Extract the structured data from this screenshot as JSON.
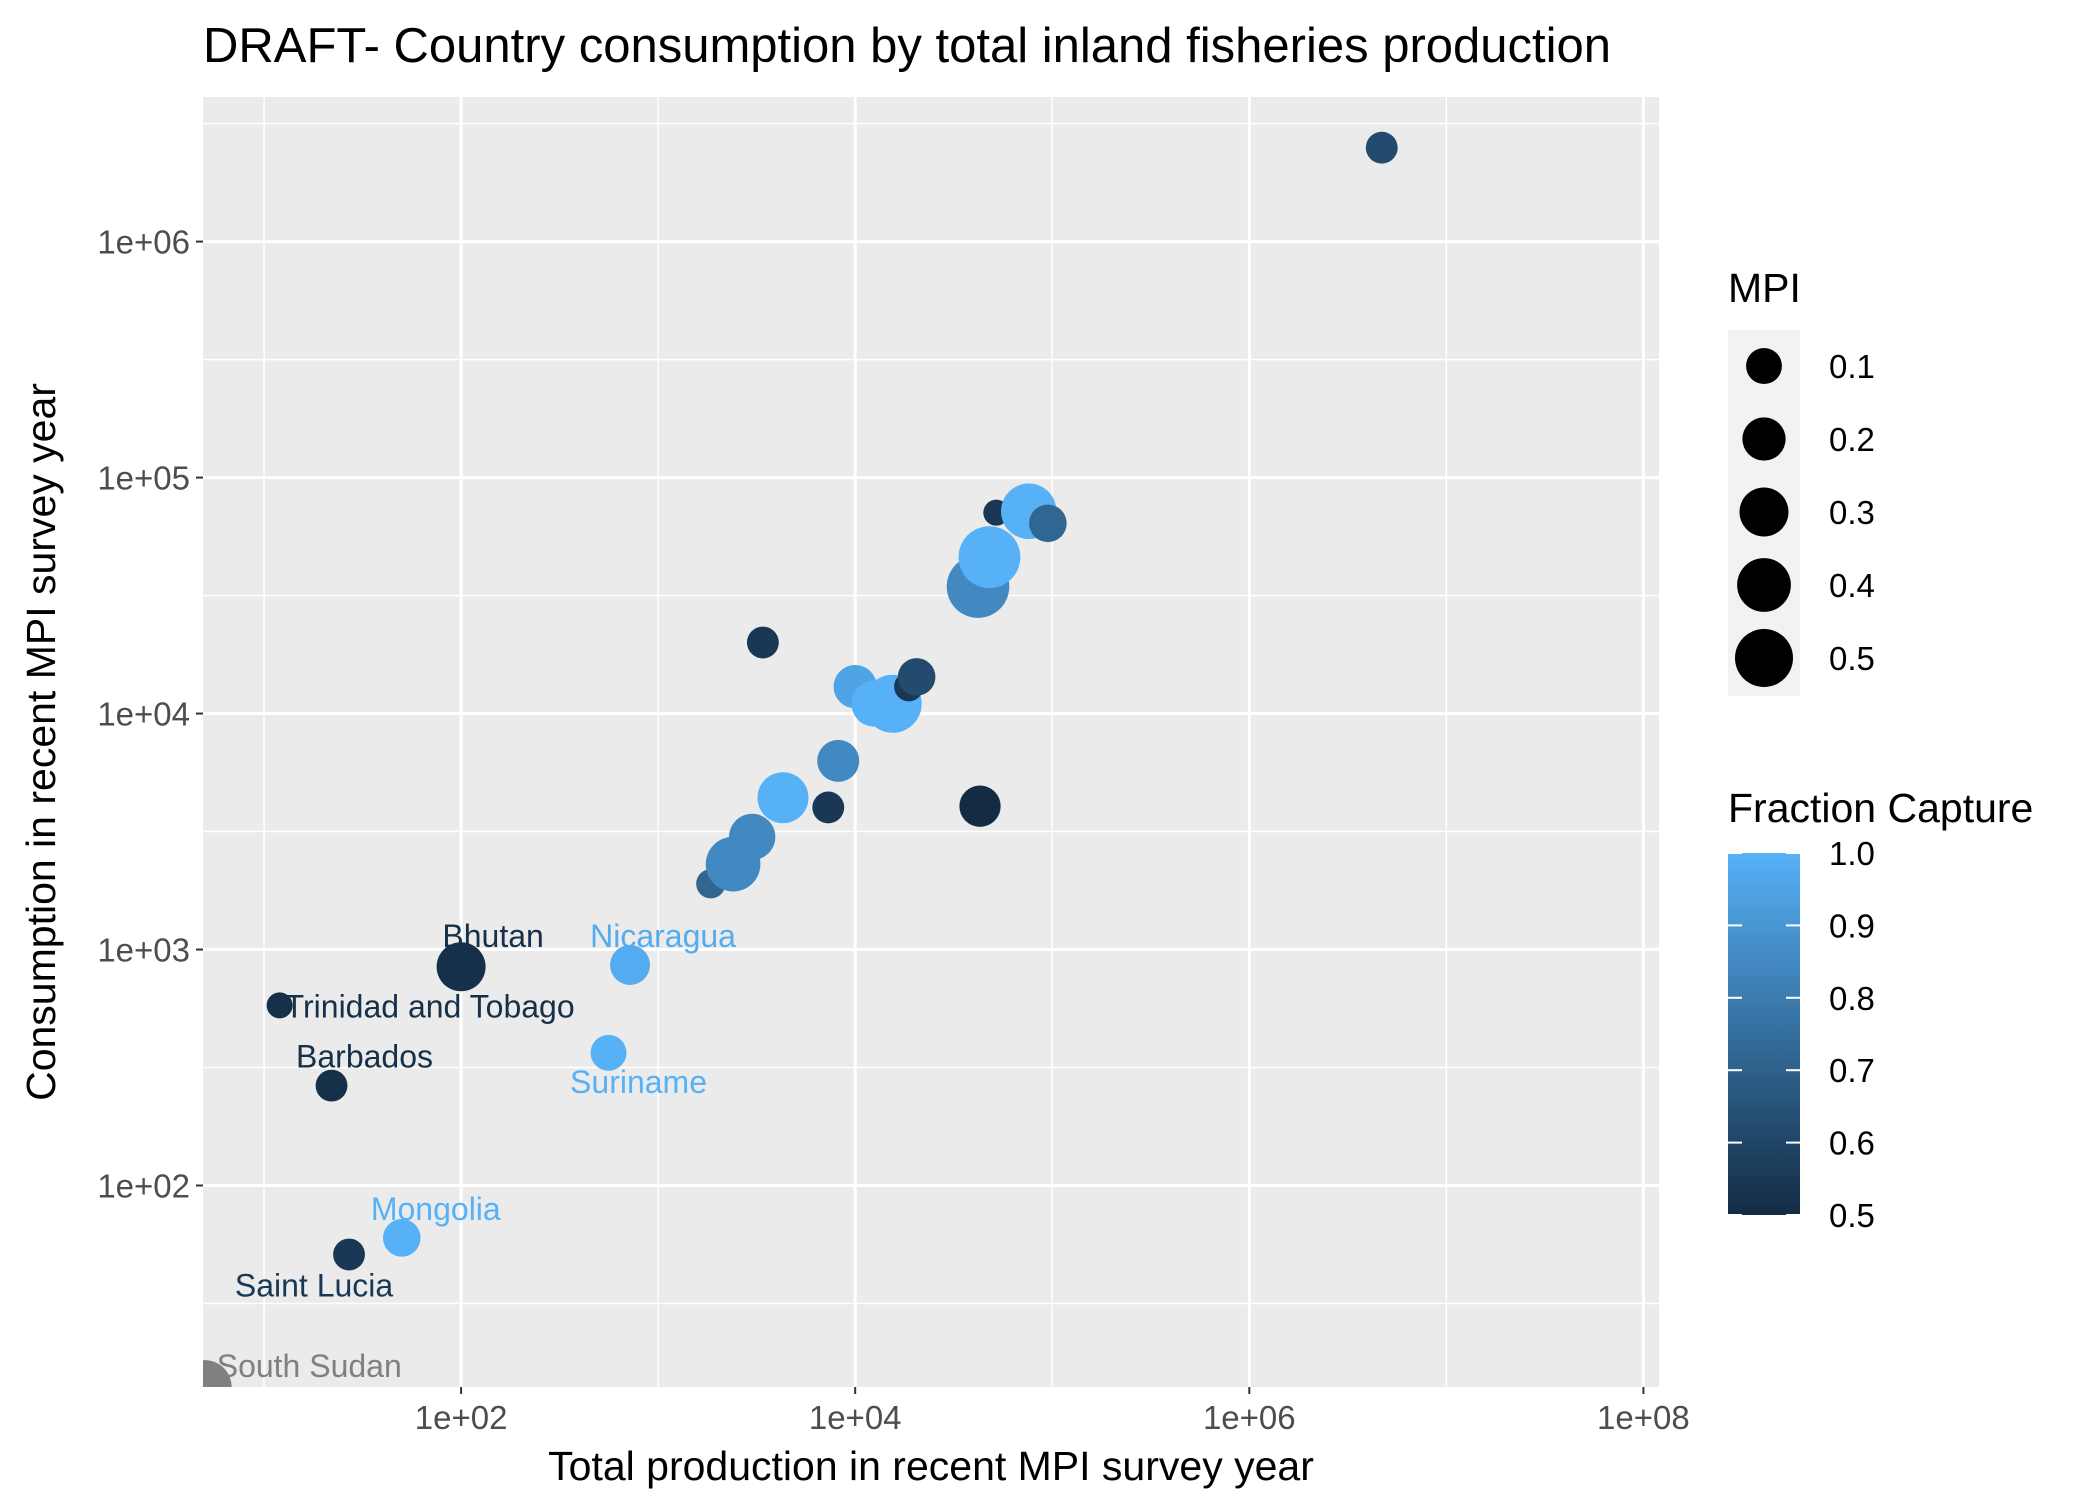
{
  "chart_data": {
    "type": "scatter",
    "title": "DRAFT- Country consumption by total inland fisheries production",
    "xlabel": "Total production in recent MPI survey year",
    "ylabel": "Consumption in recent MPI survey year",
    "x_scale": "log10",
    "y_scale": "log10",
    "xlim": [
      4.9,
      120000000
    ],
    "ylim": [
      14,
      4100000
    ],
    "x_ticks": [
      {
        "value": 100,
        "label": "1e+02"
      },
      {
        "value": 10000,
        "label": "1e+04"
      },
      {
        "value": 1000000,
        "label": "1e+06"
      },
      {
        "value": 100000000,
        "label": "1e+08"
      }
    ],
    "y_ticks": [
      {
        "value": 100,
        "label": "1e+02"
      },
      {
        "value": 1000,
        "label": "1e+03"
      },
      {
        "value": 10000,
        "label": "1e+04"
      },
      {
        "value": 100000,
        "label": "1e+05"
      },
      {
        "value": 1000000,
        "label": "1e+06"
      }
    ],
    "grid": true,
    "legend_position": "right",
    "size_legend": {
      "title": "MPI",
      "entries": [
        {
          "value": 0.1,
          "label": "0.1"
        },
        {
          "value": 0.2,
          "label": "0.2"
        },
        {
          "value": 0.3,
          "label": "0.3"
        },
        {
          "value": 0.4,
          "label": "0.4"
        },
        {
          "value": 0.5,
          "label": "0.5"
        }
      ]
    },
    "color_legend": {
      "title": "Fraction Capture",
      "low_color": "#132B43",
      "high_color": "#56B1F7",
      "min": 0.5,
      "max": 1.0,
      "ticks": [
        {
          "value": 1.0,
          "label": "1.0"
        },
        {
          "value": 0.9,
          "label": "0.9"
        },
        {
          "value": 0.8,
          "label": "0.8"
        },
        {
          "value": 0.7,
          "label": "0.7"
        },
        {
          "value": 0.6,
          "label": "0.6"
        },
        {
          "value": 0.5,
          "label": "0.5"
        }
      ]
    },
    "na_color": "#808080",
    "points": [
      {
        "x": 5,
        "y": 14,
        "mpi": 0.4,
        "fraction": null,
        "label": "South Sudan"
      },
      {
        "x": 27,
        "y": 51,
        "mpi": 0.06,
        "fraction": 0.55,
        "label": "Saint Lucia"
      },
      {
        "x": 50,
        "y": 60,
        "mpi": 0.12,
        "fraction": 1.0,
        "label": "Mongolia"
      },
      {
        "x": 22,
        "y": 265,
        "mpi": 0.06,
        "fraction": 0.52,
        "label": "Barbados"
      },
      {
        "x": 12,
        "y": 580,
        "mpi": 0.02,
        "fraction": 0.52,
        "label": "Trinidad and Tobago"
      },
      {
        "x": 100,
        "y": 845,
        "mpi": 0.3,
        "fraction": 0.52,
        "label": "Bhutan"
      },
      {
        "x": 560,
        "y": 365,
        "mpi": 0.1,
        "fraction": 1.0,
        "label": "Suriname"
      },
      {
        "x": 720,
        "y": 860,
        "mpi": 0.15,
        "fraction": 0.98,
        "label": "Nicaragua"
      },
      {
        "x": 1850,
        "y": 1900,
        "mpi": 0.04,
        "fraction": 0.72,
        "label": ""
      },
      {
        "x": 2200,
        "y": 2150,
        "mpi": 0.06,
        "fraction": 0.55,
        "label": ""
      },
      {
        "x": 2400,
        "y": 2300,
        "mpi": 0.42,
        "fraction": 0.85,
        "label": ""
      },
      {
        "x": 3000,
        "y": 3000,
        "mpi": 0.25,
        "fraction": 0.85,
        "label": ""
      },
      {
        "x": 4300,
        "y": 4400,
        "mpi": 0.34,
        "fraction": 1.0,
        "label": ""
      },
      {
        "x": 7300,
        "y": 4000,
        "mpi": 0.06,
        "fraction": 0.55,
        "label": ""
      },
      {
        "x": 8200,
        "y": 6300,
        "mpi": 0.18,
        "fraction": 0.85,
        "label": ""
      },
      {
        "x": 3400,
        "y": 20000,
        "mpi": 0.06,
        "fraction": 0.55,
        "label": ""
      },
      {
        "x": 10000,
        "y": 13000,
        "mpi": 0.2,
        "fraction": 0.95,
        "label": ""
      },
      {
        "x": 12500,
        "y": 11000,
        "mpi": 0.24,
        "fraction": 1.0,
        "label": ""
      },
      {
        "x": 15500,
        "y": 11000,
        "mpi": 0.5,
        "fraction": 1.0,
        "label": ""
      },
      {
        "x": 18700,
        "y": 13000,
        "mpi": 0.04,
        "fraction": 0.55,
        "label": ""
      },
      {
        "x": 20500,
        "y": 14300,
        "mpi": 0.12,
        "fraction": 0.62,
        "label": ""
      },
      {
        "x": 43000,
        "y": 4050,
        "mpi": 0.17,
        "fraction": 0.5,
        "label": ""
      },
      {
        "x": 42000,
        "y": 34500,
        "mpi": 0.62,
        "fraction": 0.85,
        "label": ""
      },
      {
        "x": 48000,
        "y": 46000,
        "mpi": 0.6,
        "fraction": 1.0,
        "label": ""
      },
      {
        "x": 52000,
        "y": 71000,
        "mpi": 0.02,
        "fraction": 0.55,
        "label": ""
      },
      {
        "x": 76000,
        "y": 72000,
        "mpi": 0.44,
        "fraction": 1.0,
        "label": ""
      },
      {
        "x": 95000,
        "y": 64000,
        "mpi": 0.12,
        "fraction": 0.72,
        "label": ""
      },
      {
        "x": 4700000,
        "y": 2500000,
        "mpi": 0.06,
        "fraction": 0.62,
        "label": ""
      }
    ]
  }
}
